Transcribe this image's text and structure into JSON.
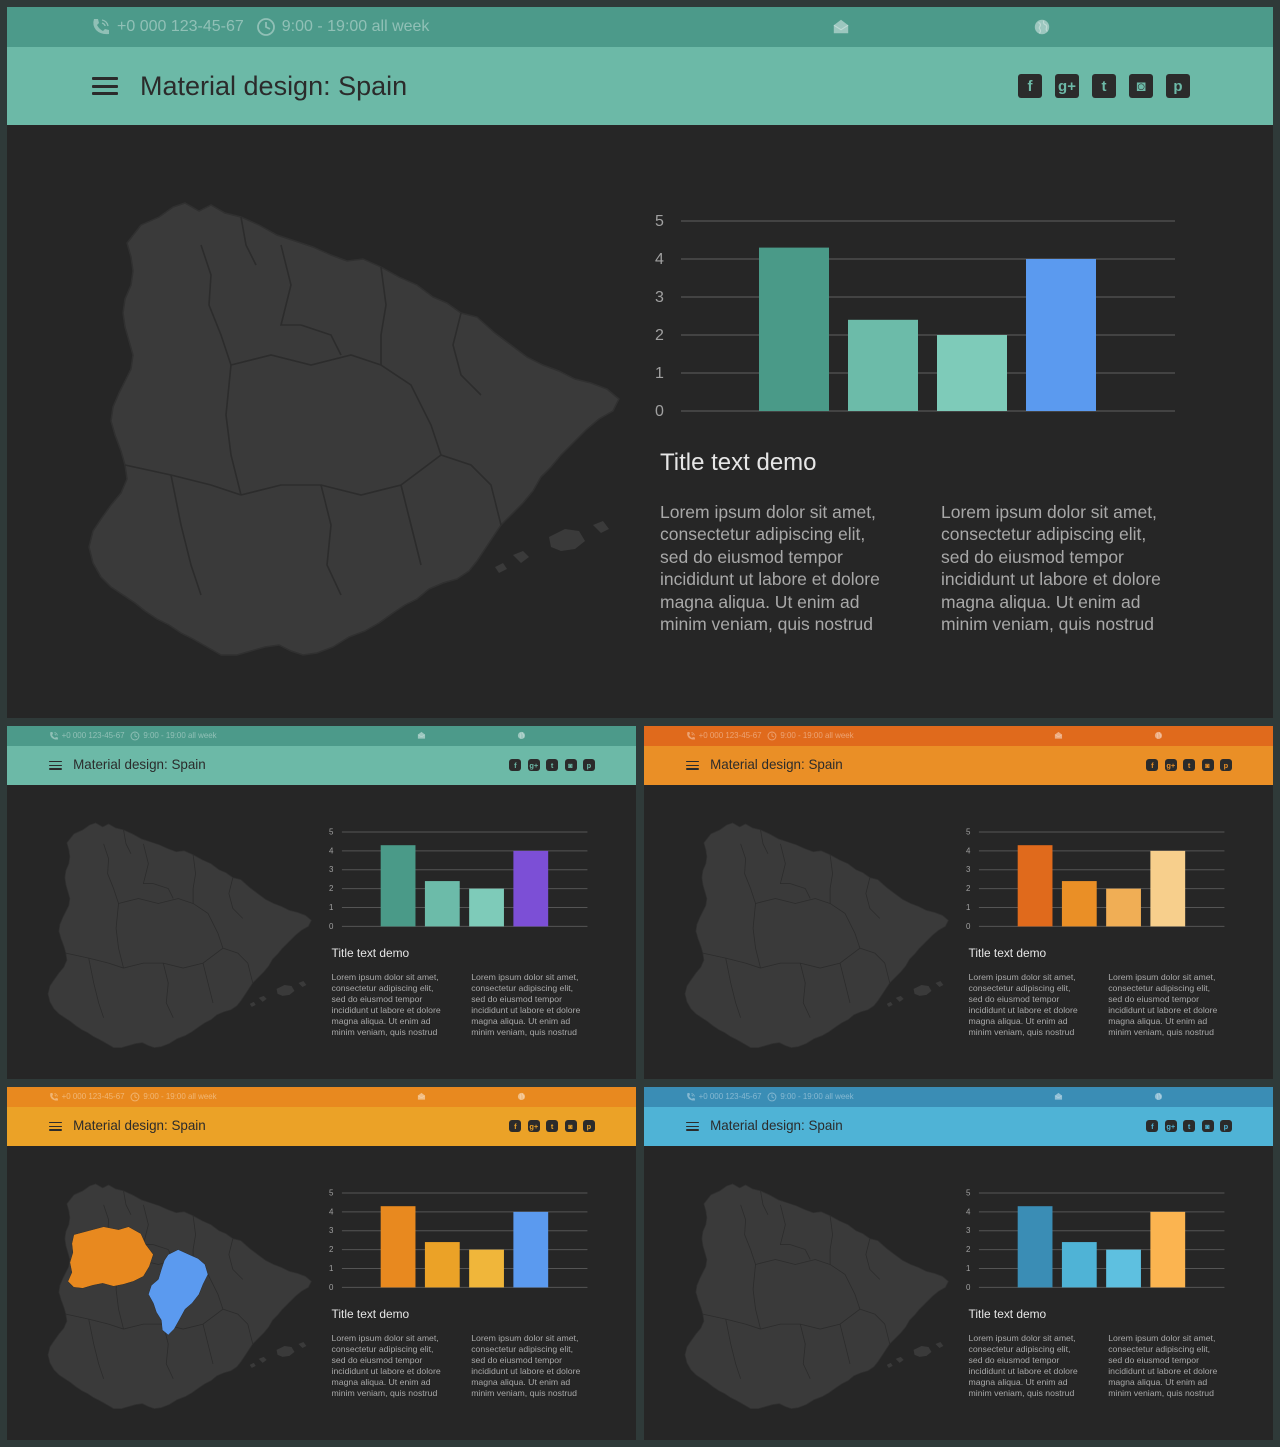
{
  "topbar": {
    "phone": "+0 000 123-45-67",
    "hours": "9:00 - 19:00  all week",
    "icons": [
      "phone-icon",
      "clock-icon",
      "mail-icon",
      "globe-icon"
    ]
  },
  "header": {
    "title": "Material design: Spain",
    "menu_icon": "hamburger-icon",
    "social": [
      {
        "name": "facebook-icon",
        "glyph": "f"
      },
      {
        "name": "google-plus-icon",
        "glyph": "g+"
      },
      {
        "name": "twitter-icon",
        "glyph": "t"
      },
      {
        "name": "instagram-icon",
        "glyph": "◙"
      },
      {
        "name": "pinterest-icon",
        "glyph": "p"
      }
    ]
  },
  "content": {
    "title": "Title text demo",
    "paragraph_1": "Lorem ipsum dolor sit amet,\nconsectetur adipiscing elit,\nsed do eiusmod tempor\nincididunt ut labore et dolore\nmagna aliqua. Ut enim ad\nminim veniam, quis nostrud",
    "paragraph_2": "Lorem ipsum dolor sit amet,\nconsectetur adipiscing elit,\nsed do eiusmod tempor\nincididunt ut labore et dolore\nmagna aliqua. Ut enim ad\nminim veniam, quis nostrud"
  },
  "chart_data": {
    "type": "bar",
    "categories": [
      "",
      "",
      "",
      ""
    ],
    "values": [
      4.3,
      2.4,
      2.0,
      4.0
    ],
    "y_ticks": [
      "0",
      "1",
      "2",
      "3",
      "4",
      "5"
    ],
    "ylim": [
      0,
      5
    ],
    "grid": true,
    "legend": "none"
  },
  "slides": [
    {
      "id": "main",
      "topbar_color": "#4c9a8a",
      "header_color": "#6cb9a7",
      "bar_colors": [
        "#4a9a88",
        "#6cbba9",
        "#7ecbb9",
        "#5b9aef"
      ],
      "highlight_regions": false
    },
    {
      "id": "teal-purple",
      "topbar_color": "#4c9a8a",
      "header_color": "#6cb9a7",
      "bar_colors": [
        "#4a9a88",
        "#6cbba9",
        "#7ecbb9",
        "#7c4fd6"
      ],
      "highlight_regions": false
    },
    {
      "id": "orange",
      "topbar_color": "#e06a1c",
      "header_color": "#ea8f26",
      "bar_colors": [
        "#e06a1c",
        "#ea8f26",
        "#f0ae55",
        "#f7cf8c"
      ],
      "highlight_regions": false
    },
    {
      "id": "amber-regions",
      "topbar_color": "#e8891f",
      "header_color": "#eba227",
      "bar_colors": [
        "#e8891f",
        "#eba227",
        "#f0b63a",
        "#5b9aef"
      ],
      "highlight_regions": true,
      "region_colors": [
        "#e8891f",
        "#5b9aef"
      ]
    },
    {
      "id": "blue",
      "topbar_color": "#3a8db5",
      "header_color": "#4fb3d6",
      "bar_colors": [
        "#3a8db5",
        "#4fb3d6",
        "#5ec0e0",
        "#fbb450"
      ],
      "highlight_regions": false
    }
  ]
}
